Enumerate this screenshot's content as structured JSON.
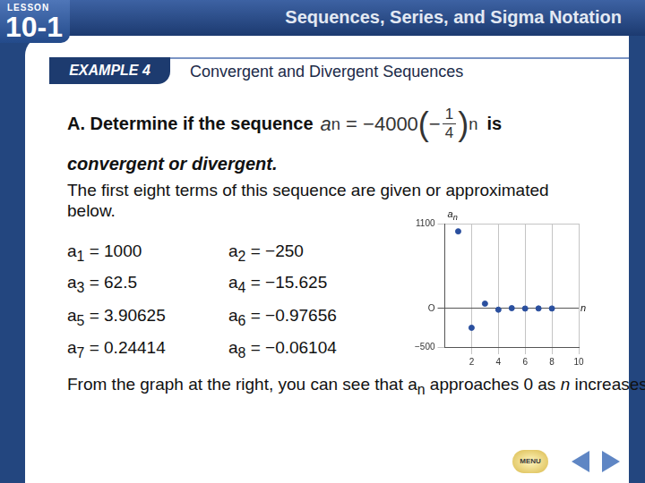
{
  "header": {
    "lesson_label": "LESSON",
    "lesson_number": "10-1",
    "title": "Sequences, Series, and Sigma Notation"
  },
  "example": {
    "badge": "EXAMPLE 4",
    "title": "Convergent and Divergent Sequences"
  },
  "question": {
    "lead": "A. Determine if the sequence",
    "formula": [
      {
        "t": "a",
        "italic": true
      },
      {
        "t": "n",
        "sub": true
      },
      {
        "t": " = "
      },
      {
        "t": "−4000"
      },
      {
        "t": "(",
        "big": true
      },
      {
        "t": "−"
      },
      {
        "frac": [
          "1",
          "4"
        ]
      },
      {
        "t": ")",
        "big": true
      },
      {
        "t": "n",
        "sup": true
      }
    ],
    "tail": "is",
    "line2": "convergent or divergent."
  },
  "intro": "The first eight terms of this sequence are given or approximated below.",
  "terms": {
    "relation": "=",
    "items": [
      {
        "name": "a",
        "index": "1",
        "value": "1000"
      },
      {
        "name": "a",
        "index": "2",
        "value": "−250"
      },
      {
        "name": "a",
        "index": "3",
        "value": "62.5"
      },
      {
        "name": "a",
        "index": "4",
        "value": "−15.625"
      },
      {
        "name": "a",
        "index": "5",
        "value": "3.90625"
      },
      {
        "name": "a",
        "index": "6",
        "value": "−0.97656"
      },
      {
        "name": "a",
        "index": "7",
        "value": "0.24414"
      },
      {
        "name": "a",
        "index": "8",
        "value": "−0.06104"
      }
    ]
  },
  "conclusion": [
    {
      "t": "From the graph at the right, you can see that a"
    },
    {
      "t": "n",
      "sub": true
    },
    {
      "t": " approaches 0 as "
    },
    {
      "t": "n",
      "italic": true
    },
    {
      "t": " increases. This sequence has a limit and is therefore convergent."
    }
  ],
  "chart_data": {
    "type": "scatter",
    "x": [
      1,
      2,
      3,
      4,
      5,
      6,
      7,
      8
    ],
    "values": [
      1000,
      -250,
      62.5,
      -15.625,
      3.90625,
      -0.97656,
      0.24414,
      -0.06104
    ],
    "color": "#2a4f9e",
    "xlim": [
      0,
      10
    ],
    "ylim": [
      -500,
      1100
    ],
    "xticks": [
      2,
      4,
      6,
      8,
      10
    ],
    "yticks": [
      {
        "value": -500,
        "label": "−500"
      },
      {
        "value": 0,
        "label": "O"
      },
      {
        "value": 1100,
        "label": "1100"
      }
    ],
    "grid": true,
    "xlabel": "n",
    "ylabel": "a",
    "ylabel_sub": "n"
  },
  "nav": {
    "menu": "MENU"
  }
}
